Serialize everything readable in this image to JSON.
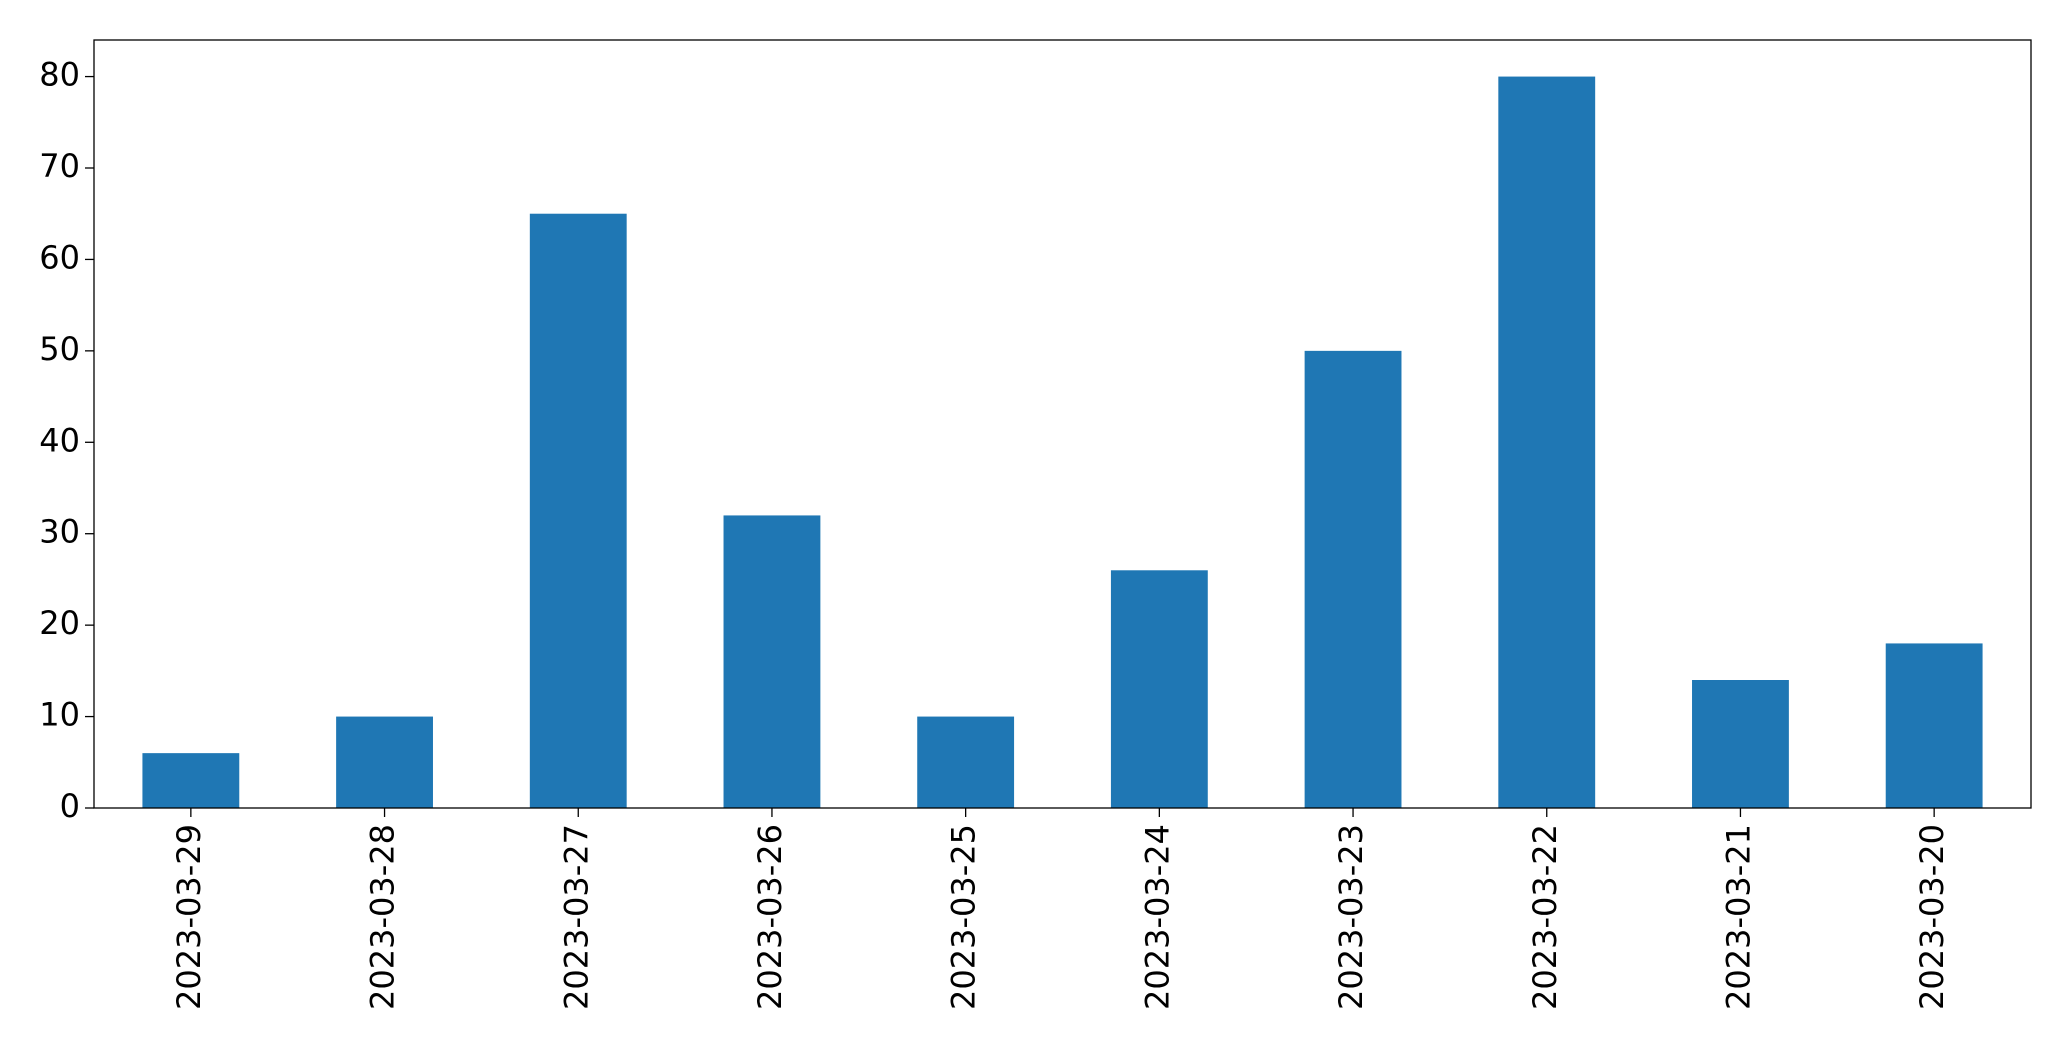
{
  "chart_data": {
    "type": "bar",
    "categories": [
      "2023-03-29",
      "2023-03-28",
      "2023-03-27",
      "2023-03-26",
      "2023-03-25",
      "2023-03-24",
      "2023-03-23",
      "2023-03-22",
      "2023-03-21",
      "2023-03-20"
    ],
    "values": [
      6,
      10,
      65,
      32,
      10,
      26,
      50,
      80,
      14,
      18
    ],
    "color": "#1f77b4",
    "ylim": [
      0,
      84
    ],
    "yticks": [
      0,
      10,
      20,
      30,
      40,
      50,
      60,
      70,
      80
    ],
    "grid": false
  }
}
